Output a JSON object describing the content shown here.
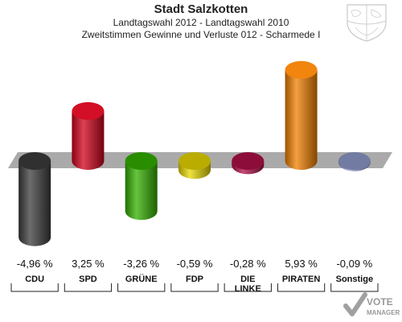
{
  "header": {
    "title": "Stadt Salzkotten",
    "subtitle": "Landtagswahl 2012 - Landtagswahl 2010",
    "subtitle2": "Zweitstimmen Gewinne und Verluste 012 - Scharmede I"
  },
  "chart_data": {
    "type": "bar",
    "title": "Stadt Salzkotten",
    "categories": [
      "CDU",
      "SPD",
      "GRÜNE",
      "FDP",
      "DIE LINKE",
      "PIRATEN",
      "Sonstige"
    ],
    "category_lines": [
      [
        "CDU"
      ],
      [
        "SPD"
      ],
      [
        "GRÜNE"
      ],
      [
        "FDP"
      ],
      [
        "DIE",
        "LINKE"
      ],
      [
        "PIRATEN"
      ],
      [
        "Sonstige"
      ]
    ],
    "values": [
      -4.96,
      3.25,
      -3.26,
      -0.59,
      -0.28,
      5.93,
      -0.09
    ],
    "value_labels": [
      "-4,96 %",
      "3,25 %",
      "-3,26 %",
      "-0,59 %",
      "-0,28 %",
      "5,93 %",
      "-0,09 %"
    ],
    "colors": [
      "#3c3c3c",
      "#d0021b",
      "#33b000",
      "#e8d800",
      "#b01048",
      "#f07f00",
      "#8f9bcb"
    ],
    "xlabel": "",
    "ylabel": ""
  },
  "logo": {
    "line1": "VOTE",
    "line2": "MANAGER"
  },
  "crest_icon": "nrw-coat-of-arms-icon",
  "logo_icon": "votemanager-check-icon"
}
